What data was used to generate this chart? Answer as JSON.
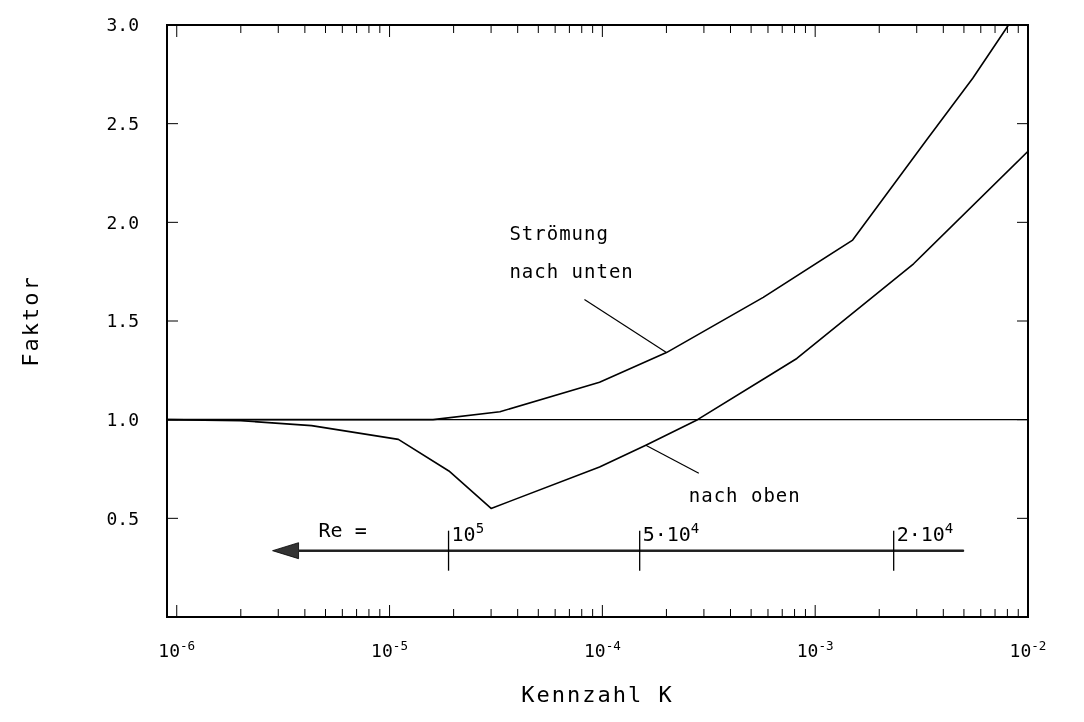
{
  "chart_data": {
    "type": "line",
    "xlabel": "Kennzahl K",
    "ylabel": "Faktor",
    "log": "x",
    "xlim": [
      9e-07,
      0.01
    ],
    "ylim": [
      0,
      3
    ],
    "xticks": [
      {
        "value": 1e-06,
        "label": "10$^{-6}$"
      },
      {
        "value": 2e-06,
        "label": null
      },
      {
        "value": 3e-06,
        "label": null
      },
      {
        "value": 4e-06,
        "label": null
      },
      {
        "value": 5e-06,
        "label": null
      },
      {
        "value": 6e-06,
        "label": null
      },
      {
        "value": 7e-06,
        "label": null
      },
      {
        "value": 8e-06,
        "label": null
      },
      {
        "value": 9e-06,
        "label": null
      },
      {
        "value": 1e-05,
        "label": "10$^{-5}$"
      },
      {
        "value": 2e-05,
        "label": null
      },
      {
        "value": 3e-05,
        "label": null
      },
      {
        "value": 4e-05,
        "label": null
      },
      {
        "value": 5e-05,
        "label": null
      },
      {
        "value": 6e-05,
        "label": null
      },
      {
        "value": 7e-05,
        "label": null
      },
      {
        "value": 8e-05,
        "label": null
      },
      {
        "value": 9e-05,
        "label": null
      },
      {
        "value": 0.0001,
        "label": "10$^{-4}$"
      },
      {
        "value": 0.0002,
        "label": null
      },
      {
        "value": 0.0003,
        "label": null
      },
      {
        "value": 0.0004,
        "label": null
      },
      {
        "value": 0.0005,
        "label": null
      },
      {
        "value": 0.0006,
        "label": null
      },
      {
        "value": 0.0007,
        "label": null
      },
      {
        "value": 0.0008,
        "label": null
      },
      {
        "value": 0.0009,
        "label": null
      },
      {
        "value": 0.001,
        "label": "10$^{-3}$"
      },
      {
        "value": 0.002,
        "label": null
      },
      {
        "value": 0.003,
        "label": null
      },
      {
        "value": 0.004,
        "label": null
      },
      {
        "value": 0.005,
        "label": null
      },
      {
        "value": 0.006,
        "label": null
      },
      {
        "value": 0.007,
        "label": null
      },
      {
        "value": 0.008,
        "label": null
      },
      {
        "value": 0.009,
        "label": null
      },
      {
        "value": 0.01,
        "label": "10$^{-2}$"
      }
    ],
    "yticks": [
      {
        "value": 0.5,
        "label": "0.5"
      },
      {
        "value": 1,
        "label": "1.0"
      },
      {
        "value": 1.5,
        "label": "1.5"
      },
      {
        "value": 2,
        "label": "2.0"
      },
      {
        "value": 2.5,
        "label": "2.5"
      },
      {
        "value": 3,
        "label": "3.0"
      }
    ],
    "series": [
      {
        "color": "#000000",
        "x": [
          9e-07,
          1.6e-05,
          3.3e-05,
          9.7e-05,
          0.0002,
          0.00057,
          0.0015,
          0.00335,
          0.0055,
          0.0081
        ],
        "values": [
          1.0,
          1.0,
          1.04,
          1.19,
          1.34,
          1.62,
          1.91,
          2.42,
          2.73,
          3.0
        ]
      },
      {
        "color": "#000000",
        "x": [
          9e-07,
          2e-06,
          4.3e-06,
          1.1e-05,
          1.9e-05,
          3e-05,
          9.7e-05,
          0.00016,
          0.00028,
          0.00082,
          0.0029,
          0.01
        ],
        "values": [
          1.0,
          0.995,
          0.97,
          0.9,
          0.74,
          0.55,
          0.76,
          0.87,
          1.0,
          1.31,
          1.79,
          2.36
        ]
      }
    ],
    "ref_lines": [
      {
        "axis": "y",
        "value": 1,
        "color": "#000000"
      }
    ],
    "marker": "none",
    "line_style": "solid",
    "grid": false,
    "annotations": [
      {
        "text": "Strömung\nnach unten",
        "x": 0.0002,
        "y": 1.34
      },
      {
        "text": "nach oben",
        "x": 0.00016,
        "y": 0.87
      },
      "Re =",
      "10$^{5}$",
      "5·10$^{4}$",
      "2·10$^{4}$"
    ]
  }
}
